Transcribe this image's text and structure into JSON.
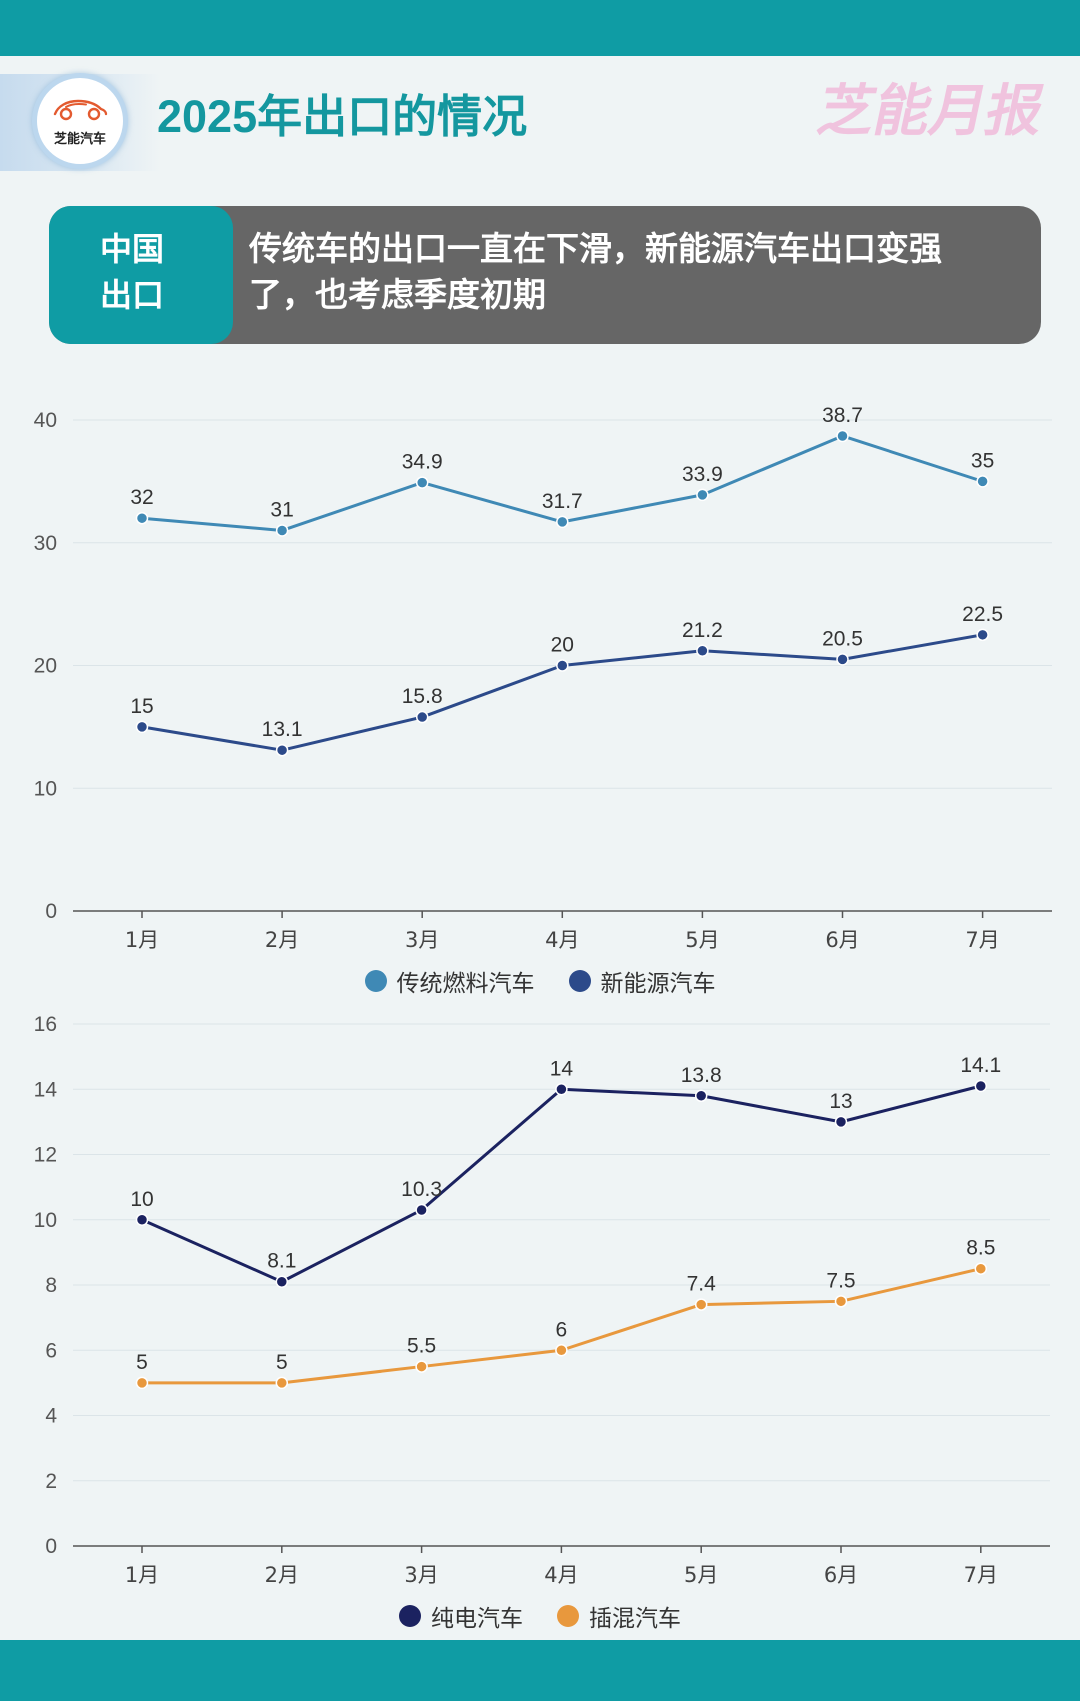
{
  "header": {
    "logo_text": "芝能汽车",
    "title": "2025年出口的情况",
    "watermark": "芝能月报"
  },
  "callout": {
    "tag_line1": "中国",
    "tag_line2": "出口",
    "text": "传统车的出口一直在下滑，新能源汽车出口变强了，也考虑季度初期"
  },
  "icons": {
    "logo": "car-logo-icon"
  },
  "colors": {
    "brand_teal": "#0f9ca4",
    "title_teal": "#14979f",
    "callout_gray": "#666666",
    "watermark_pink": "#f0c3de",
    "logo_car": "#e35a2f"
  },
  "chart_data": [
    {
      "type": "line",
      "categories": [
        "1月",
        "2月",
        "3月",
        "4月",
        "5月",
        "6月",
        "7月"
      ],
      "series": [
        {
          "name": "传统燃料汽车",
          "values": [
            32,
            31,
            34.9,
            31.7,
            33.9,
            38.7,
            35
          ],
          "color": "#3f89b5"
        },
        {
          "name": "新能源汽车",
          "values": [
            15,
            13.1,
            15.8,
            20,
            21.2,
            20.5,
            22.5
          ],
          "color": "#2c4a8a"
        }
      ],
      "ylim": [
        0,
        40
      ],
      "yticks": [
        0,
        10,
        20,
        30,
        40
      ],
      "grid": true,
      "data_labels": true,
      "legend": "bottom"
    },
    {
      "type": "line",
      "categories": [
        "1月",
        "2月",
        "3月",
        "4月",
        "5月",
        "6月",
        "7月"
      ],
      "series": [
        {
          "name": "纯电汽车",
          "values": [
            10,
            8.1,
            10.3,
            14,
            13.8,
            13,
            14.1
          ],
          "color": "#1b2260"
        },
        {
          "name": "插混汽车",
          "values": [
            5,
            5,
            5.5,
            6,
            7.4,
            7.5,
            8.5
          ],
          "color": "#e8983d"
        }
      ],
      "ylim": [
        0,
        16
      ],
      "yticks": [
        0,
        2,
        4,
        6,
        8,
        10,
        12,
        14,
        16
      ],
      "grid": true,
      "data_labels": true,
      "legend": "bottom"
    }
  ]
}
